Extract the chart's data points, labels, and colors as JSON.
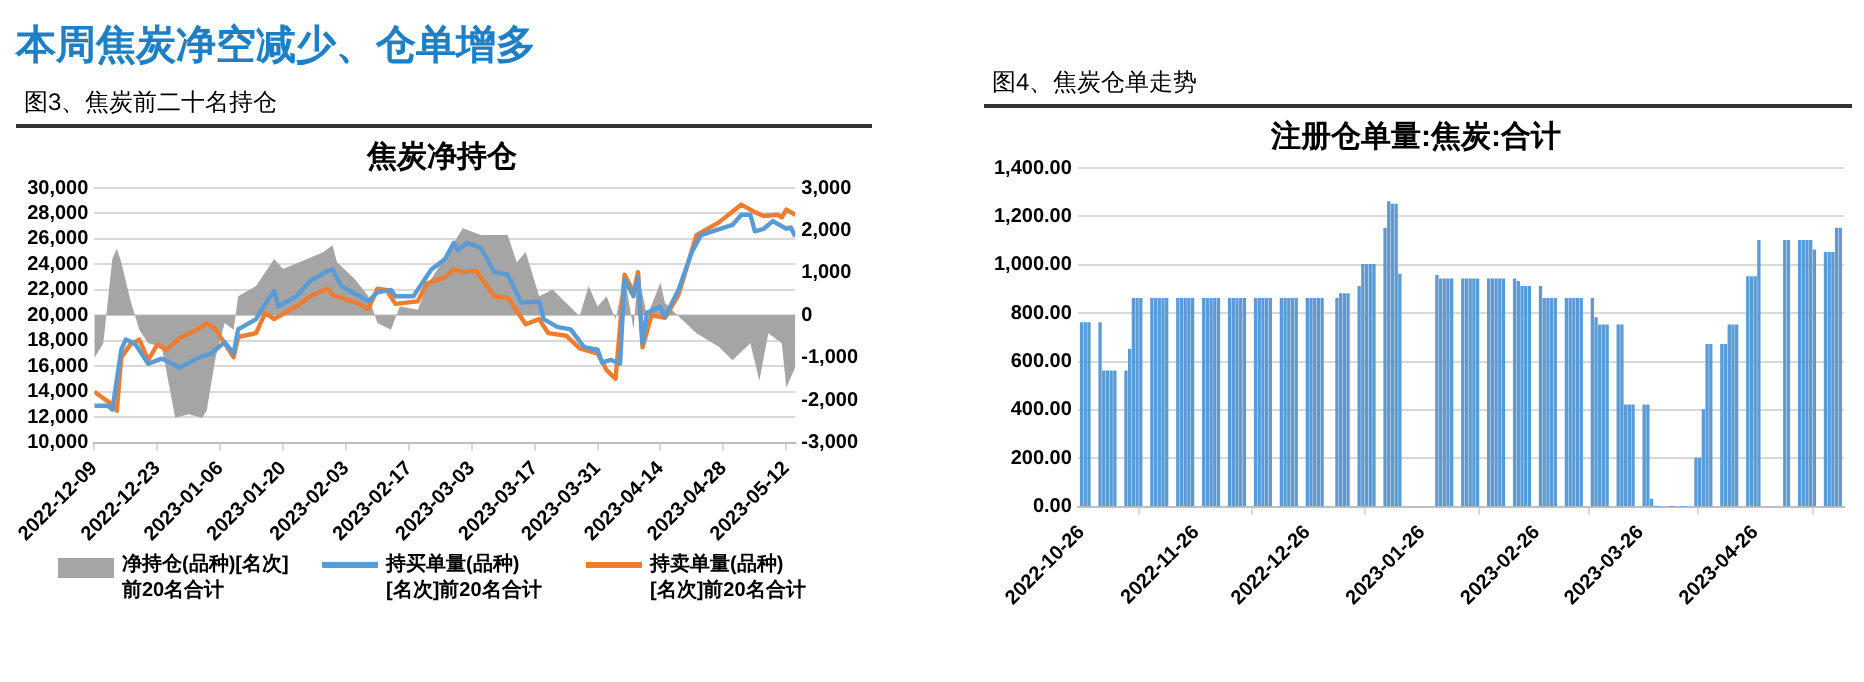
{
  "chart_data": [
    {
      "type": "line",
      "title": "焦炭净持仓",
      "annotations": [
        "本周焦炭净空减少、仓单增多",
        "图3、焦炭前二十名持仓"
      ],
      "legend": "bottom",
      "grid": "y",
      "marker": "none",
      "line_style": "solid",
      "xlim": [
        "2022-12-09",
        "2023-05-14"
      ],
      "xticks": [
        "2022-12-09",
        "2022-12-23",
        "2023-01-06",
        "2023-01-20",
        "2023-02-03",
        "2023-02-17",
        "2023-03-03",
        "2023-03-17",
        "2023-03-31",
        "2023-04-14",
        "2023-04-28",
        "2023-05-12"
      ],
      "ylim": [
        10000,
        30000
      ],
      "yticks": [
        {
          "value": 10000,
          "label": "10,000"
        },
        {
          "value": 12000,
          "label": "12,000"
        },
        {
          "value": 14000,
          "label": "14,000"
        },
        {
          "value": 16000,
          "label": "16,000"
        },
        {
          "value": 18000,
          "label": "18,000"
        },
        {
          "value": 20000,
          "label": "20,000"
        },
        {
          "value": 22000,
          "label": "22,000"
        },
        {
          "value": 24000,
          "label": "24,000"
        },
        {
          "value": 26000,
          "label": "26,000"
        },
        {
          "value": 28000,
          "label": "28,000"
        },
        {
          "value": 30000,
          "label": "30,000"
        }
      ],
      "y2lim": [
        -3000,
        3000
      ],
      "y2ticks": [
        {
          "value": -3000,
          "label": "-3,000"
        },
        {
          "value": -2000,
          "label": "-2,000"
        },
        {
          "value": -1000,
          "label": "-1,000"
        },
        0,
        {
          "value": 1000,
          "label": "1,000"
        },
        {
          "value": 2000,
          "label": "2,000"
        },
        {
          "value": 3000,
          "label": "3,000"
        }
      ],
      "series": [
        {
          "name": "净持仓(品种)[名次]前20名合计",
          "type": "area",
          "axis": "y2",
          "color": "#a5a5a5",
          "x": [
            "2022-12-09",
            "2022-12-11",
            "2022-12-13",
            "2022-12-14",
            "2022-12-15",
            "2022-12-17",
            "2022-12-19",
            "2022-12-21",
            "2022-12-24",
            "2022-12-27",
            "2022-12-30",
            "2023-01-02",
            "2023-01-03",
            "2023-01-05",
            "2023-01-07",
            "2023-01-09",
            "2023-01-10",
            "2023-01-14",
            "2023-01-18",
            "2023-01-20",
            "2023-01-29",
            "2023-01-31",
            "2023-02-01",
            "2023-02-05",
            "2023-02-08",
            "2023-02-10",
            "2023-02-13",
            "2023-02-15",
            "2023-02-19",
            "2023-02-21",
            "2023-03-01",
            "2023-03-05",
            "2023-03-11",
            "2023-03-13",
            "2023-03-15",
            "2023-03-18",
            "2023-03-21",
            "2023-03-24",
            "2023-03-27",
            "2023-03-29",
            "2023-03-31",
            "2023-04-02",
            "2023-04-04",
            "2023-04-06",
            "2023-04-08",
            "2023-04-09",
            "2023-04-11",
            "2023-04-14",
            "2023-04-15",
            "2023-04-18",
            "2023-04-22",
            "2023-04-27",
            "2023-04-30",
            "2023-05-04",
            "2023-05-06",
            "2023-05-08",
            "2023-05-11",
            "2023-05-12",
            "2023-05-14"
          ],
          "values": [
            -1010,
            -660,
            1330,
            1570,
            1250,
            370,
            -340,
            -660,
            -740,
            -2410,
            -2330,
            -2410,
            -2250,
            -980,
            -180,
            -340,
            450,
            690,
            1330,
            1090,
            1490,
            1650,
            1250,
            850,
            450,
            -180,
            -340,
            210,
            130,
            690,
            2050,
            1890,
            1890,
            1250,
            1490,
            450,
            610,
            290,
            -20,
            690,
            210,
            450,
            -100,
            930,
            -340,
            1010,
            -20,
            770,
            290,
            -20,
            -420,
            -740,
            -1060,
            -660,
            -1540,
            -420,
            -660,
            -1700,
            -1220
          ]
        },
        {
          "name": "持买单量(品种)[名次]前20名合计",
          "type": "line",
          "color": "#5b9bd5",
          "x": [
            "2022-12-09",
            "2022-12-12",
            "2022-12-13",
            "2022-12-15",
            "2022-12-16",
            "2022-12-18",
            "2022-12-21",
            "2022-12-24",
            "2022-12-28",
            "2023-01-02",
            "2023-01-04",
            "2023-01-07",
            "2023-01-09",
            "2023-01-10",
            "2023-01-14",
            "2023-01-16",
            "2023-01-18",
            "2023-01-19",
            "2023-01-23",
            "2023-01-26",
            "2023-01-30",
            "2023-01-31",
            "2023-02-02",
            "2023-02-06",
            "2023-02-08",
            "2023-02-10",
            "2023-02-13",
            "2023-02-14",
            "2023-02-18",
            "2023-02-22",
            "2023-02-25",
            "2023-02-27",
            "2023-02-28",
            "2023-03-02",
            "2023-03-05",
            "2023-03-08",
            "2023-03-11",
            "2023-03-14",
            "2023-03-18",
            "2023-03-19",
            "2023-03-22",
            "2023-03-25",
            "2023-03-28",
            "2023-03-31",
            "2023-04-01",
            "2023-04-03",
            "2023-04-05",
            "2023-04-06",
            "2023-04-08",
            "2023-04-09",
            "2023-04-10",
            "2023-04-11",
            "2023-04-14",
            "2023-04-15",
            "2023-04-18",
            "2023-04-21",
            "2023-04-23",
            "2023-04-30",
            "2023-05-02",
            "2023-05-04",
            "2023-05-05",
            "2023-05-07",
            "2023-05-09",
            "2023-05-12",
            "2023-05-13",
            "2023-05-14"
          ],
          "values": [
            12900,
            12900,
            12600,
            17300,
            18100,
            17800,
            16200,
            16600,
            15900,
            16800,
            17000,
            17900,
            17000,
            18900,
            19700,
            20900,
            21900,
            20700,
            21500,
            22700,
            23500,
            23600,
            22300,
            21500,
            21100,
            21800,
            22000,
            21500,
            21500,
            23600,
            24400,
            25700,
            25100,
            25700,
            25300,
            23400,
            23200,
            21000,
            21100,
            19700,
            19100,
            18900,
            17500,
            17300,
            16300,
            16500,
            16200,
            22800,
            21500,
            23000,
            17800,
            20200,
            20700,
            19900,
            22000,
            25000,
            26300,
            27100,
            27900,
            27900,
            26600,
            26800,
            27400,
            26800,
            26900,
            26200
          ]
        },
        {
          "name": "持卖单量(品种)[名次]前20名合计",
          "type": "line",
          "color": "#ed7d31",
          "x": [
            "2022-12-09",
            "2022-12-13",
            "2022-12-14",
            "2022-12-15",
            "2022-12-17",
            "2022-12-19",
            "2022-12-21",
            "2022-12-23",
            "2022-12-25",
            "2022-12-28",
            "2023-01-01",
            "2023-01-03",
            "2023-01-05",
            "2023-01-09",
            "2023-01-10",
            "2023-01-14",
            "2023-01-16",
            "2023-01-18",
            "2023-01-23",
            "2023-01-26",
            "2023-01-30",
            "2023-01-31",
            "2023-02-06",
            "2023-02-08",
            "2023-02-10",
            "2023-02-12",
            "2023-02-14",
            "2023-02-19",
            "2023-02-21",
            "2023-02-25",
            "2023-02-27",
            "2023-03-01",
            "2023-03-04",
            "2023-03-08",
            "2023-03-11",
            "2023-03-15",
            "2023-03-18",
            "2023-03-20",
            "2023-03-24",
            "2023-03-27",
            "2023-03-31",
            "2023-04-02",
            "2023-04-04",
            "2023-04-06",
            "2023-04-08",
            "2023-04-09",
            "2023-04-10",
            "2023-04-12",
            "2023-04-15",
            "2023-04-18",
            "2023-04-22",
            "2023-04-27",
            "2023-05-02",
            "2023-05-05",
            "2023-05-07",
            "2023-05-10",
            "2023-05-11",
            "2023-05-12",
            "2023-05-14"
          ],
          "values": [
            14000,
            13000,
            12500,
            16700,
            17700,
            18100,
            16500,
            17700,
            17300,
            18200,
            18900,
            19400,
            18900,
            16700,
            18300,
            18600,
            20200,
            19700,
            20700,
            21500,
            22100,
            21600,
            20900,
            20500,
            22100,
            22000,
            20900,
            21100,
            22500,
            23000,
            23600,
            23400,
            23500,
            21500,
            21400,
            19300,
            19700,
            18600,
            18400,
            17400,
            17000,
            15700,
            15000,
            23200,
            21800,
            23400,
            17500,
            20000,
            19800,
            21600,
            26300,
            27300,
            28700,
            28100,
            27800,
            27900,
            27700,
            28300,
            27900
          ]
        }
      ]
    },
    {
      "type": "bar",
      "title": "注册仓单量:焦炭:合计",
      "annotations": [
        "图4、焦炭仓单走势"
      ],
      "grid": "y",
      "color": "#5b9bd5",
      "xlim": [
        "2022-10-25",
        "2023-05-20"
      ],
      "xticks": [
        "2022-10-26",
        "2022-11-26",
        "2022-12-26",
        "2023-01-26",
        "2023-02-26",
        "2023-03-26",
        "2023-04-26"
      ],
      "ylim": [
        0,
        1400
      ],
      "yticks": [
        {
          "value": 0,
          "label": "0.00"
        },
        {
          "value": 200,
          "label": "200.00"
        },
        {
          "value": 400,
          "label": "400.00"
        },
        {
          "value": 600,
          "label": "600.00"
        },
        {
          "value": 800,
          "label": "800.00"
        },
        {
          "value": 1000,
          "label": "1,000.00"
        },
        {
          "value": 1200,
          "label": "1,200.00"
        },
        {
          "value": 1400,
          "label": "1,400.00"
        }
      ],
      "x": [
        "2022-10-26",
        "2022-10-27",
        "2022-10-28",
        "2022-10-31",
        "2022-11-01",
        "2022-11-02",
        "2022-11-03",
        "2022-11-04",
        "2022-11-07",
        "2022-11-08",
        "2022-11-09",
        "2022-11-10",
        "2022-11-11",
        "2022-11-14",
        "2022-11-15",
        "2022-11-16",
        "2022-11-17",
        "2022-11-18",
        "2022-11-21",
        "2022-11-22",
        "2022-11-23",
        "2022-11-24",
        "2022-11-25",
        "2022-11-28",
        "2022-11-29",
        "2022-11-30",
        "2022-12-01",
        "2022-12-02",
        "2022-12-05",
        "2022-12-06",
        "2022-12-07",
        "2022-12-08",
        "2022-12-09",
        "2022-12-12",
        "2022-12-13",
        "2022-12-14",
        "2022-12-15",
        "2022-12-16",
        "2022-12-19",
        "2022-12-20",
        "2022-12-21",
        "2022-12-22",
        "2022-12-23",
        "2022-12-26",
        "2022-12-27",
        "2022-12-28",
        "2022-12-29",
        "2022-12-30",
        "2023-01-03",
        "2023-01-04",
        "2023-01-05",
        "2023-01-06",
        "2023-01-09",
        "2023-01-10",
        "2023-01-11",
        "2023-01-12",
        "2023-01-13",
        "2023-01-16",
        "2023-01-17",
        "2023-01-18",
        "2023-01-19",
        "2023-01-20",
        "2023-01-30",
        "2023-01-31",
        "2023-02-01",
        "2023-02-02",
        "2023-02-03",
        "2023-02-06",
        "2023-02-07",
        "2023-02-08",
        "2023-02-09",
        "2023-02-10",
        "2023-02-13",
        "2023-02-14",
        "2023-02-15",
        "2023-02-16",
        "2023-02-17",
        "2023-02-20",
        "2023-02-21",
        "2023-02-22",
        "2023-02-23",
        "2023-02-24",
        "2023-02-27",
        "2023-02-28",
        "2023-03-01",
        "2023-03-02",
        "2023-03-03",
        "2023-03-06",
        "2023-03-07",
        "2023-03-08",
        "2023-03-09",
        "2023-03-10",
        "2023-03-13",
        "2023-03-14",
        "2023-03-15",
        "2023-03-16",
        "2023-03-17",
        "2023-03-20",
        "2023-03-21",
        "2023-03-22",
        "2023-03-23",
        "2023-03-24",
        "2023-03-27",
        "2023-03-28",
        "2023-03-29",
        "2023-03-30",
        "2023-03-31",
        "2023-04-03",
        "2023-04-04",
        "2023-04-06",
        "2023-04-07",
        "2023-04-10",
        "2023-04-11",
        "2023-04-12",
        "2023-04-13",
        "2023-04-14",
        "2023-04-17",
        "2023-04-18",
        "2023-04-19",
        "2023-04-20",
        "2023-04-21",
        "2023-04-24",
        "2023-04-25",
        "2023-04-26",
        "2023-04-27",
        "2023-05-04",
        "2023-05-05",
        "2023-05-08",
        "2023-05-09",
        "2023-05-10",
        "2023-05-11",
        "2023-05-12",
        "2023-05-15",
        "2023-05-16",
        "2023-05-17",
        "2023-05-18",
        "2023-05-19"
      ],
      "values": [
        760,
        760,
        760,
        760,
        560,
        560,
        560,
        560,
        560,
        650,
        860,
        860,
        860,
        860,
        860,
        860,
        860,
        860,
        860,
        860,
        860,
        860,
        860,
        860,
        860,
        860,
        860,
        860,
        860,
        860,
        860,
        860,
        860,
        860,
        860,
        860,
        860,
        860,
        860,
        860,
        860,
        860,
        860,
        860,
        860,
        860,
        860,
        860,
        860,
        880,
        880,
        880,
        910,
        1000,
        1000,
        1000,
        1000,
        1150,
        1260,
        1250,
        1250,
        960,
        955,
        940,
        940,
        940,
        940,
        940,
        940,
        940,
        940,
        940,
        940,
        940,
        940,
        940,
        940,
        940,
        930,
        910,
        910,
        910,
        910,
        860,
        860,
        860,
        860,
        860,
        860,
        860,
        860,
        860,
        860,
        780,
        750,
        750,
        750,
        750,
        750,
        420,
        420,
        420,
        420,
        420,
        30,
        0,
        0,
        0,
        0,
        0,
        0,
        200,
        200,
        400,
        670,
        670,
        670,
        670,
        750,
        750,
        750,
        950,
        950,
        950,
        1100,
        1100,
        1100,
        1100,
        1100,
        1100,
        1100,
        1060,
        1050,
        1050,
        1050,
        1150,
        1150
      ]
    }
  ]
}
